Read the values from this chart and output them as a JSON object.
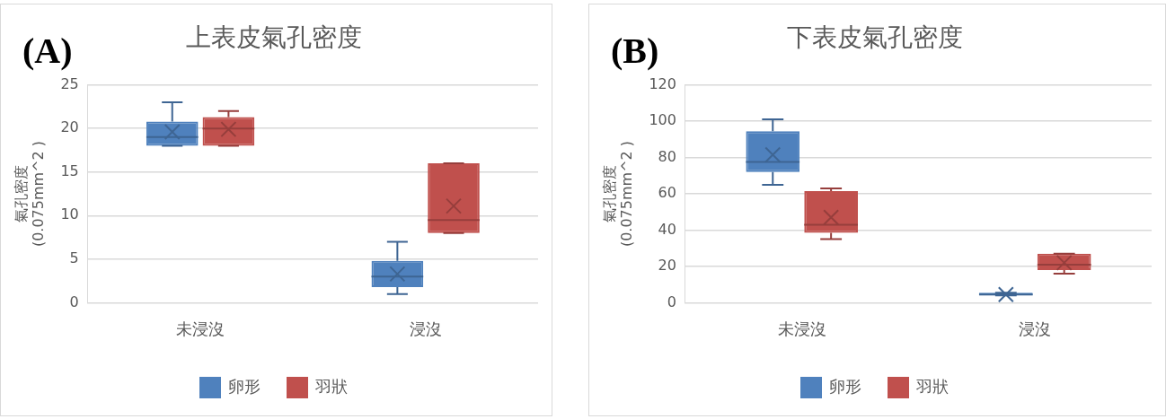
{
  "chart_data": [
    {
      "type": "box",
      "title": "上表皮氣孔密度",
      "ylabel": "氣孔密度\n(0.075mm^2 )",
      "annotations": [
        "(A)"
      ],
      "categories": [
        "未浸沒",
        "浸沒"
      ],
      "ylim": [
        0,
        25
      ],
      "yticks": [
        0,
        5,
        10,
        15,
        20,
        25
      ],
      "grid": "y",
      "legend": "bottom",
      "series": [
        {
          "name": "卵形",
          "color": "#4f81bd",
          "boxes": [
            {
              "low": 18,
              "q1": 18,
              "median": 19,
              "q3": 20.8,
              "high": 23,
              "mean": 19.6
            },
            {
              "low": 1,
              "q1": 1.8,
              "median": 3,
              "q3": 4.8,
              "high": 7,
              "mean": 3.3
            }
          ]
        },
        {
          "name": "羽狀",
          "color": "#c0504d",
          "boxes": [
            {
              "low": 18,
              "q1": 18,
              "median": 20,
              "q3": 21.3,
              "high": 22,
              "mean": 19.9
            },
            {
              "low": 8,
              "q1": 8,
              "median": 9.5,
              "q3": 16,
              "high": 16,
              "mean": 11.1
            }
          ]
        }
      ]
    },
    {
      "type": "box",
      "title": "下表皮氣孔密度",
      "ylabel": "氣孔密度\n(0.075mm^2 )",
      "annotations": [
        "(B)"
      ],
      "categories": [
        "未浸沒",
        "浸沒"
      ],
      "ylim": [
        0,
        120
      ],
      "yticks": [
        0,
        20,
        40,
        60,
        80,
        100,
        120
      ],
      "grid": "y",
      "legend": "bottom",
      "series": [
        {
          "name": "卵形",
          "color": "#4f81bd",
          "boxes": [
            {
              "low": 65,
              "q1": 72,
              "median": 77.5,
              "q3": 94.5,
              "high": 101,
              "mean": 81.5
            },
            {
              "low": 4,
              "q1": 4,
              "median": 4.5,
              "q3": 5.5,
              "high": 5.5,
              "mean": 4.5
            }
          ]
        },
        {
          "name": "羽狀",
          "color": "#c0504d",
          "boxes": [
            {
              "low": 35,
              "q1": 38.5,
              "median": 43,
              "q3": 61.5,
              "high": 63,
              "mean": 47
            },
            {
              "low": 16,
              "q1": 18,
              "median": 21,
              "q3": 27,
              "high": 27,
              "mean": 22
            }
          ]
        }
      ]
    }
  ]
}
